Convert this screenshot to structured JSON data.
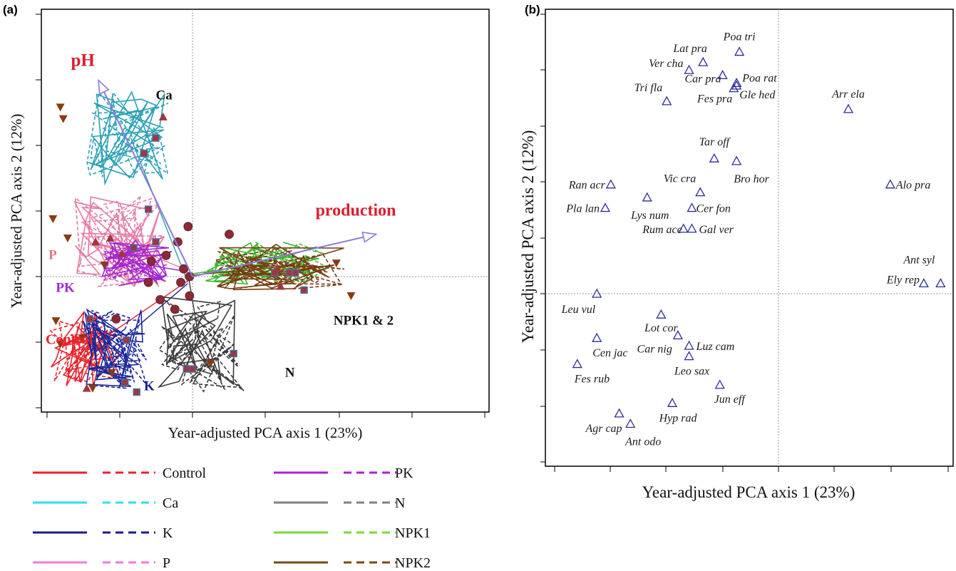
{
  "panel_tags": [
    "(a)",
    "(b)"
  ],
  "chart_data": [
    {
      "panel": "(a)",
      "type": "scatter",
      "xlabel": "Year-adjusted PCA axis 1 (23%)",
      "ylabel": "Year-adjusted PCA axis 2 (12%)",
      "xlim": [
        -1,
        1
      ],
      "ylim": [
        -1,
        1
      ],
      "grid": false,
      "reference_lines": "dotted lines at x = 0 and y = 0",
      "vectors": [
        {
          "name": "pH",
          "color": "#d81f2e",
          "x1": -0.64,
          "y1": 1.02
        },
        {
          "name": "production",
          "color": "#d81f2e",
          "x1": 1.25,
          "y1": 0.22
        }
      ],
      "group_labels": [
        {
          "text": "Ca",
          "color": "#111111",
          "x": -0.25,
          "y": 0.92
        },
        {
          "text": "P",
          "color": "#d97a8a",
          "x": -0.98,
          "y": 0.09
        },
        {
          "text": "PK",
          "color": "#9b2bd0",
          "x": -0.93,
          "y": -0.08
        },
        {
          "text": "Control",
          "color": "#e8222b",
          "x": -1.0,
          "y": -0.35
        },
        {
          "text": "K",
          "color": "#1b1b8a",
          "x": -0.33,
          "y": -0.59
        },
        {
          "text": "N",
          "color": "#111111",
          "x": 0.63,
          "y": -0.52
        },
        {
          "text": "NPK1 & 2",
          "color": "#111111",
          "x": 0.96,
          "y": -0.25
        }
      ],
      "treatments": [
        {
          "name": "Control",
          "color": "#e8222b",
          "cx": -0.72,
          "cy": -0.38,
          "spread": [
            0.25,
            0.2
          ]
        },
        {
          "name": "Ca",
          "color": "#2aa0b4",
          "cx": -0.42,
          "cy": 0.72,
          "spread": [
            0.3,
            0.24
          ]
        },
        {
          "name": "K",
          "color": "#1b2a9a",
          "cx": -0.53,
          "cy": -0.36,
          "spread": [
            0.22,
            0.22
          ]
        },
        {
          "name": "P",
          "color": "#e47ba4",
          "cx": -0.5,
          "cy": 0.18,
          "spread": [
            0.32,
            0.25
          ]
        },
        {
          "name": "PK",
          "color": "#a526d0",
          "cx": -0.38,
          "cy": 0.07,
          "spread": [
            0.24,
            0.12
          ]
        },
        {
          "name": "N",
          "color": "#3b3b3b",
          "cx": 0.05,
          "cy": -0.35,
          "spread": [
            0.3,
            0.25
          ]
        },
        {
          "name": "NPK1",
          "color": "#3cb52d",
          "cx": 0.52,
          "cy": 0.07,
          "spread": [
            0.45,
            0.11
          ]
        },
        {
          "name": "NPK2",
          "color": "#7a3a14",
          "cx": 0.6,
          "cy": 0.05,
          "spread": [
            0.45,
            0.12
          ]
        }
      ],
      "markers": [
        {
          "shape": "square",
          "color": "#a0363e",
          "x": -0.25,
          "y": 0.72
        },
        {
          "shape": "square",
          "color": "#a0363e",
          "x": -0.33,
          "y": 0.64
        },
        {
          "shape": "square",
          "color": "#a0363e",
          "x": -0.3,
          "y": 0.35
        },
        {
          "shape": "square",
          "color": "#a0363e",
          "x": -0.25,
          "y": 0.18
        },
        {
          "shape": "square",
          "color": "#a0363e",
          "x": -0.4,
          "y": 0.15
        },
        {
          "shape": "square",
          "color": "#a0363e",
          "x": -0.7,
          "y": -0.22
        },
        {
          "shape": "square",
          "color": "#a0363e",
          "x": -0.45,
          "y": -0.33
        },
        {
          "shape": "square",
          "color": "#a0363e",
          "x": -0.46,
          "y": -0.55
        },
        {
          "shape": "square",
          "color": "#a0363e",
          "x": -0.38,
          "y": -0.6
        },
        {
          "shape": "square",
          "color": "#a0363e",
          "x": -0.04,
          "y": -0.48
        },
        {
          "shape": "square",
          "color": "#a0363e",
          "x": 0.0,
          "y": -0.48
        },
        {
          "shape": "square",
          "color": "#a0363e",
          "x": 0.28,
          "y": -0.4
        },
        {
          "shape": "square",
          "color": "#a0363e",
          "x": 0.56,
          "y": 0.02
        },
        {
          "shape": "square",
          "color": "#a0363e",
          "x": 0.66,
          "y": 0.02
        },
        {
          "shape": "square",
          "color": "#a0363e",
          "x": 0.7,
          "y": 0.02
        },
        {
          "shape": "square",
          "color": "#a0363e",
          "x": 0.76,
          "y": -0.07
        },
        {
          "shape": "circle",
          "color": "#8a2a36",
          "x": -0.03,
          "y": 0.26
        },
        {
          "shape": "circle",
          "color": "#8a2a36",
          "x": -0.1,
          "y": 0.18
        },
        {
          "shape": "circle",
          "color": "#8a2a36",
          "x": -0.18,
          "y": 0.11
        },
        {
          "shape": "circle",
          "color": "#8a2a36",
          "x": -0.06,
          "y": 0.04
        },
        {
          "shape": "circle",
          "color": "#8a2a36",
          "x": -0.02,
          "y": 0.0
        },
        {
          "shape": "circle",
          "color": "#8a2a36",
          "x": -0.08,
          "y": -0.03
        },
        {
          "shape": "circle",
          "color": "#8a2a36",
          "x": -0.02,
          "y": -0.1
        },
        {
          "shape": "circle",
          "color": "#8a2a36",
          "x": -0.12,
          "y": -0.17
        },
        {
          "shape": "circle",
          "color": "#8a2a36",
          "x": -0.22,
          "y": -0.12
        },
        {
          "shape": "circle",
          "color": "#8a2a36",
          "x": -0.3,
          "y": -0.03
        },
        {
          "shape": "circle",
          "color": "#8a2a36",
          "x": -0.28,
          "y": 0.08
        },
        {
          "shape": "circle",
          "color": "#8a2a36",
          "x": -0.52,
          "y": -0.22
        },
        {
          "shape": "circle",
          "color": "#8a2a36",
          "x": 0.25,
          "y": 0.22
        },
        {
          "shape": "triangle-up",
          "color": "#a0363e",
          "x": -0.2,
          "y": 0.83
        },
        {
          "shape": "triangle-up",
          "color": "#a0363e",
          "x": -0.48,
          "y": 0.12
        },
        {
          "shape": "triangle-up",
          "color": "#a0363e",
          "x": -0.56,
          "y": 0.2
        },
        {
          "shape": "triangle-up",
          "color": "#a0363e",
          "x": -0.66,
          "y": 0.18
        },
        {
          "shape": "triangle-up",
          "color": "#a0363e",
          "x": -0.72,
          "y": -0.58
        },
        {
          "shape": "triangle-up",
          "color": "#a0363e",
          "x": 0.58,
          "y": 0.04
        },
        {
          "shape": "triangle-up",
          "color": "#a0363e",
          "x": 0.6,
          "y": -0.05
        },
        {
          "shape": "triangle-down",
          "color": "#8a3a12",
          "x": -0.9,
          "y": 0.88
        },
        {
          "shape": "triangle-down",
          "color": "#8a3a12",
          "x": -0.88,
          "y": 0.82
        },
        {
          "shape": "triangle-down",
          "color": "#8a3a12",
          "x": -0.95,
          "y": 0.3
        },
        {
          "shape": "triangle-down",
          "color": "#8a3a12",
          "x": -0.85,
          "y": 0.2
        },
        {
          "shape": "triangle-down",
          "color": "#8a3a12",
          "x": -0.6,
          "y": 0.06
        },
        {
          "shape": "triangle-down",
          "color": "#8a3a12",
          "x": -0.93,
          "y": -0.23
        },
        {
          "shape": "triangle-down",
          "color": "#8a3a12",
          "x": -0.9,
          "y": -0.35
        },
        {
          "shape": "triangle-down",
          "color": "#8a3a12",
          "x": -0.75,
          "y": -0.32
        },
        {
          "shape": "triangle-down",
          "color": "#8a3a12",
          "x": -0.55,
          "y": -0.5
        },
        {
          "shape": "triangle-down",
          "color": "#8a3a12",
          "x": -0.68,
          "y": -0.58
        },
        {
          "shape": "triangle-down",
          "color": "#8a3a12",
          "x": 0.12,
          "y": -0.45
        },
        {
          "shape": "triangle-down",
          "color": "#8a3a12",
          "x": 0.98,
          "y": 0.07
        },
        {
          "shape": "triangle-down",
          "color": "#8a3a12",
          "x": 1.08,
          "y": -0.1
        }
      ]
    },
    {
      "panel": "(b)",
      "type": "scatter",
      "xlabel": "Year-adjusted PCA axis 1 (23%)",
      "ylabel": "Year-adjusted PCA axis 2 (12%)",
      "xlim": [
        -1,
        1
      ],
      "ylim": [
        -1,
        1
      ],
      "grid": false,
      "reference_lines": "dotted lines at x = 0 and y = 0",
      "marker": "open triangle",
      "marker_color": "#2b2b9c",
      "points": [
        {
          "label": "Poa tri",
          "x": -0.14,
          "y": 0.93
        },
        {
          "label": "Lat pra",
          "x": -0.27,
          "y": 0.89
        },
        {
          "label": "Ver cha",
          "x": -0.32,
          "y": 0.86
        },
        {
          "label": "Car pra",
          "x": -0.2,
          "y": 0.84
        },
        {
          "label": "Poa rat",
          "x": -0.15,
          "y": 0.81
        },
        {
          "label": "Fes pra",
          "x": -0.16,
          "y": 0.79
        },
        {
          "label": "Gle hed",
          "x": -0.15,
          "y": 0.8
        },
        {
          "label": "Tri fla",
          "x": -0.4,
          "y": 0.74
        },
        {
          "label": "Arr ela",
          "x": 0.25,
          "y": 0.71
        },
        {
          "label": "Tar off",
          "x": -0.23,
          "y": 0.52
        },
        {
          "label": "Bro hor",
          "x": -0.15,
          "y": 0.51
        },
        {
          "label": "Ran acr",
          "x": -0.6,
          "y": 0.42
        },
        {
          "label": "Alo pra",
          "x": 0.4,
          "y": 0.42
        },
        {
          "label": "Vic cra",
          "x": -0.28,
          "y": 0.39
        },
        {
          "label": "Lys num",
          "x": -0.47,
          "y": 0.37
        },
        {
          "label": "Pla lan",
          "x": -0.62,
          "y": 0.33
        },
        {
          "label": "Cer fon",
          "x": -0.31,
          "y": 0.33
        },
        {
          "label": "Rum ace",
          "x": -0.34,
          "y": 0.25
        },
        {
          "label": "Gal ver",
          "x": -0.31,
          "y": 0.25
        },
        {
          "label": "Ant syl",
          "x": 0.58,
          "y": 0.04
        },
        {
          "label": "Ely rep",
          "x": 0.52,
          "y": 0.04
        },
        {
          "label": "Leu vul",
          "x": -0.65,
          "y": 0.0
        },
        {
          "label": "Lot cor",
          "x": -0.42,
          "y": -0.08
        },
        {
          "label": "Cen jac",
          "x": -0.65,
          "y": -0.17
        },
        {
          "label": "Car nig",
          "x": -0.36,
          "y": -0.16
        },
        {
          "label": "Luz cam",
          "x": -0.32,
          "y": -0.2
        },
        {
          "label": "Fes rub",
          "x": -0.72,
          "y": -0.27
        },
        {
          "label": "Leo sax",
          "x": -0.32,
          "y": -0.24
        },
        {
          "label": "Jun eff",
          "x": -0.21,
          "y": -0.35
        },
        {
          "label": "Hyp rad",
          "x": -0.38,
          "y": -0.42
        },
        {
          "label": "Agr cap",
          "x": -0.57,
          "y": -0.46
        },
        {
          "label": "Ant odo",
          "x": -0.53,
          "y": -0.5
        }
      ]
    }
  ],
  "legend": {
    "entries": [
      {
        "label": "Control",
        "color": "#e8222b"
      },
      {
        "label": "Ca",
        "color": "#2ee0ea"
      },
      {
        "label": "K",
        "color": "#1b1b8a"
      },
      {
        "label": "P",
        "color": "#f07ad8"
      },
      {
        "label": "PK",
        "color": "#b020d0"
      },
      {
        "label": "N",
        "color": "#808080"
      },
      {
        "label": "NPK1",
        "color": "#79d83a"
      },
      {
        "label": "NPK2",
        "color": "#7a4a12"
      }
    ]
  }
}
